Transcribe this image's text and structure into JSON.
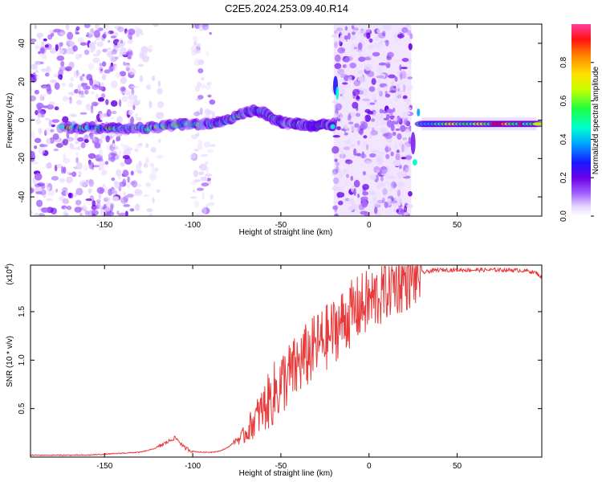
{
  "title": "C2E5.2024.253.09.40.R14",
  "chart_data": [
    {
      "type": "heatmap",
      "xlabel": "Height of straight line (km)",
      "ylabel": "Frequency (Hz)",
      "xlim": [
        -192,
        98
      ],
      "ylim": [
        -50,
        50
      ],
      "xticks": [
        -150,
        -100,
        -50,
        0,
        50
      ],
      "yticks": [
        -40,
        -20,
        0,
        20,
        40
      ],
      "colorbar": {
        "label": "Normalized spectral amplitude",
        "range": [
          0.0,
          1.0
        ],
        "ticks": [
          0.0,
          0.2,
          0.4,
          0.6,
          0.8
        ],
        "tick_labels": [
          "0.0",
          "0.2",
          "0.4",
          "0.6",
          "0.8"
        ],
        "colormap": [
          "#ffffff",
          "#e8d8ff",
          "#a868ff",
          "#6a00e8",
          "#1f10ff",
          "#00a0ff",
          "#00ffc8",
          "#20ff40",
          "#c8ff00",
          "#ffe000",
          "#ff8000",
          "#ff0000",
          "#ff40a0"
        ]
      },
      "ridge_line": {
        "x": [
          -175,
          -160,
          -145,
          -135,
          -125,
          -115,
          -105,
          -95,
          -88,
          -80,
          -72,
          -66,
          -60,
          -55,
          -50,
          -45,
          -40,
          -35,
          -30,
          -25,
          -20
        ],
        "freq": [
          -4,
          -4,
          -4,
          -4,
          -4,
          -3,
          -2,
          -2,
          -2,
          0,
          3,
          5,
          4,
          1,
          -1,
          -2,
          -2,
          -3,
          -3,
          -2,
          -4
        ]
      },
      "right_band": {
        "x": [
          30,
          95
        ],
        "freq": -2
      }
    },
    {
      "type": "line",
      "xlabel": "Height of straight line (km)",
      "ylabel": "SNR (10 * v/v)",
      "y_multiplier": "(x10",
      "y_multiplier_exp": "4",
      "xlim": [
        -192,
        98
      ],
      "ylim": [
        0,
        1.98
      ],
      "xticks": [
        -150,
        -100,
        -50,
        0,
        50
      ],
      "yticks": [
        0.5,
        1.0,
        1.5
      ],
      "ytick_labels": [
        "0.5",
        "1.0",
        "1.5"
      ],
      "series": [
        {
          "color": "#e83a3a",
          "x": [
            -192,
            -180,
            -170,
            -160,
            -150,
            -140,
            -130,
            -125,
            -120,
            -115,
            -112,
            -110,
            -108,
            -105,
            -100,
            -95,
            -90,
            -85,
            -80,
            -75,
            -72,
            -70,
            -68,
            -65,
            -62,
            -60,
            -58,
            -55,
            -52,
            -50,
            -48,
            -45,
            -42,
            -40,
            -38,
            -35,
            -32,
            -30,
            -28,
            -25,
            -22,
            -20,
            -18,
            -15,
            -12,
            -10,
            -8,
            -5,
            -2,
            0,
            2,
            5,
            8,
            10,
            12,
            15,
            18,
            20,
            25,
            30,
            35,
            40,
            50,
            60,
            70,
            80,
            90,
            95,
            98
          ],
          "y": [
            0.02,
            0.02,
            0.02,
            0.02,
            0.03,
            0.04,
            0.05,
            0.07,
            0.1,
            0.15,
            0.18,
            0.2,
            0.17,
            0.1,
            0.06,
            0.05,
            0.05,
            0.06,
            0.1,
            0.18,
            0.2,
            0.25,
            0.3,
            0.38,
            0.45,
            0.5,
            0.55,
            0.62,
            0.7,
            0.75,
            0.8,
            0.85,
            0.9,
            0.95,
            1.0,
            1.05,
            1.1,
            1.15,
            1.18,
            1.22,
            1.26,
            1.3,
            1.35,
            1.4,
            1.45,
            1.48,
            1.5,
            1.55,
            1.58,
            1.6,
            1.62,
            1.66,
            1.7,
            1.74,
            1.78,
            1.8,
            1.82,
            1.84,
            1.88,
            1.9,
            1.92,
            1.93,
            1.93,
            1.93,
            1.93,
            1.93,
            1.92,
            1.9,
            1.85
          ]
        }
      ]
    }
  ]
}
